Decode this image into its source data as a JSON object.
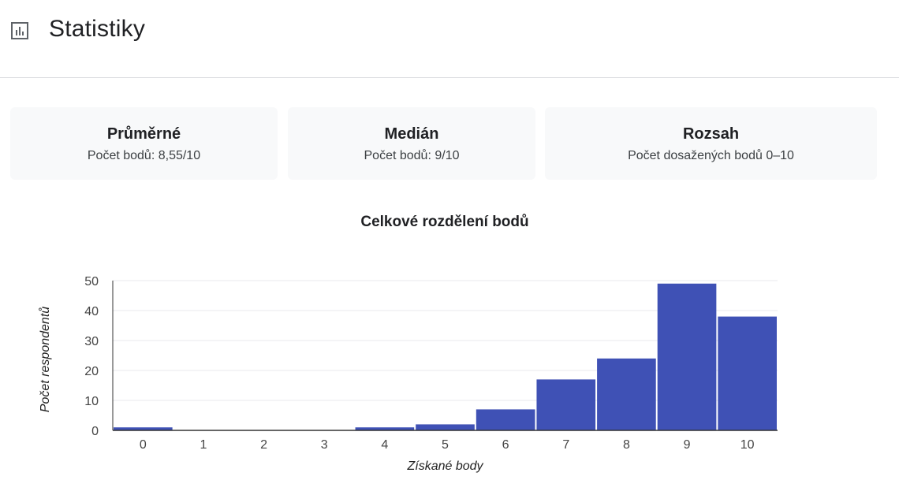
{
  "header": {
    "title": "Statistiky",
    "icon": "bar-chart-icon"
  },
  "cards": [
    {
      "title": "Průměrné",
      "subtitle": "Počet bodů: 8,55/10"
    },
    {
      "title": "Medián",
      "subtitle": "Počet bodů: 9/10"
    },
    {
      "title": "Rozsah",
      "subtitle": "Počet dosažených bodů 0–10"
    }
  ],
  "colors": {
    "bar": "#3f51b5",
    "grid": "#e8eaed",
    "axis": "#333333"
  },
  "chart_data": {
    "type": "bar",
    "title": "Celkové rozdělení bodů",
    "xlabel": "Získané body",
    "ylabel": "Počet respondentů",
    "categories": [
      "0",
      "1",
      "2",
      "3",
      "4",
      "5",
      "6",
      "7",
      "8",
      "9",
      "10"
    ],
    "values": [
      1,
      0,
      0,
      0,
      1,
      2,
      7,
      17,
      24,
      49,
      38
    ],
    "ylim": [
      0,
      50
    ],
    "yticks": [
      0,
      10,
      20,
      30,
      40,
      50
    ],
    "grid": true,
    "legend": "none"
  }
}
